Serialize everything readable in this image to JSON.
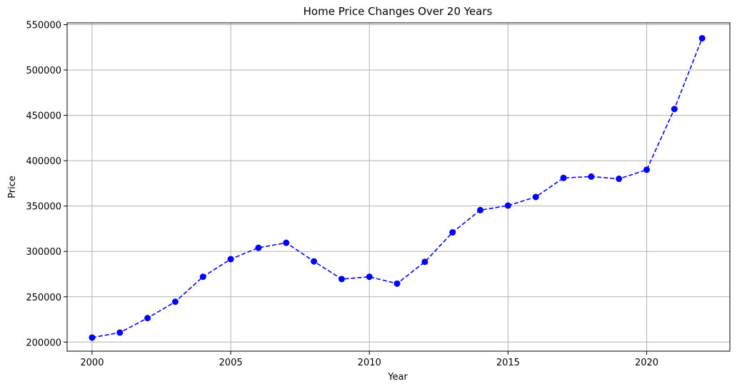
{
  "chart_data": {
    "type": "line",
    "title": "Home Price Changes Over 20 Years",
    "xlabel": "Year",
    "ylabel": "Price",
    "xlim": [
      1999.1,
      2023.0
    ],
    "ylim": [
      190000,
      552000
    ],
    "x_ticks": [
      2000,
      2005,
      2010,
      2015,
      2020
    ],
    "y_ticks": [
      200000,
      250000,
      300000,
      350000,
      400000,
      450000,
      500000,
      550000
    ],
    "grid": true,
    "series": [
      {
        "color": "#0000ff",
        "line_style": "dashed",
        "marker": "circle",
        "x": [
          2000,
          2001,
          2002,
          2003,
          2004,
          2005,
          2006,
          2007,
          2008,
          2009,
          2010,
          2011,
          2012,
          2013,
          2014,
          2015,
          2016,
          2017,
          2018,
          2019,
          2020,
          2021,
          2022
        ],
        "values": [
          205000,
          210500,
          226500,
          244500,
          272000,
          291500,
          304000,
          309500,
          289000,
          269500,
          272000,
          264500,
          288500,
          321000,
          345500,
          350500,
          360000,
          381000,
          382500,
          380000,
          390000,
          457000,
          535000
        ]
      }
    ]
  }
}
